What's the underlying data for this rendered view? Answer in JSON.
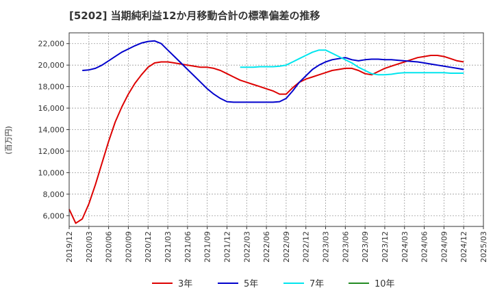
{
  "chart_data": {
    "type": "line",
    "title": "[5202]  当期純利益12か月移動合計の標準偏差の推移",
    "xlabel": "",
    "ylabel": "(百万円)",
    "ylim": [
      5000,
      23000
    ],
    "yticks": [
      6000,
      8000,
      10000,
      12000,
      14000,
      16000,
      18000,
      20000,
      22000
    ],
    "ytick_labels": [
      "6,000",
      "8,000",
      "10,000",
      "12,000",
      "14,000",
      "16,000",
      "18,000",
      "20,000",
      "22,000"
    ],
    "xtick_labels": [
      "2019/12",
      "2020/03",
      "2020/06",
      "2020/09",
      "2020/12",
      "2021/03",
      "2021/06",
      "2021/09",
      "2021/12",
      "2022/03",
      "2022/06",
      "2022/09",
      "2022/12",
      "2023/03",
      "2023/06",
      "2023/09",
      "2023/12",
      "2024/03",
      "2024/06",
      "2024/09",
      "2024/12",
      "2025/03"
    ],
    "grid": true,
    "legend_position": "bottom",
    "series": [
      {
        "name": "3年",
        "color": "#dd0000",
        "start_index": 0,
        "values": [
          6600,
          5300,
          5700,
          7100,
          8900,
          10900,
          12900,
          14700,
          16100,
          17300,
          18300,
          19100,
          19800,
          20200,
          20300,
          20300,
          20200,
          20100,
          20000,
          19900,
          19800,
          19800,
          19700,
          19500,
          19200,
          18900,
          18600,
          18400,
          18200,
          18000,
          17800,
          17600,
          17300,
          17300,
          17900,
          18400,
          18700,
          18900,
          19100,
          19300,
          19500,
          19600,
          19700,
          19700,
          19500,
          19200,
          19100,
          19400,
          19700,
          19900,
          20100,
          20300,
          20500,
          20700,
          20800,
          20900,
          20900,
          20800,
          20600,
          20400,
          20300
        ]
      },
      {
        "name": "5年",
        "color": "#0000cc",
        "start_index": 2,
        "values": [
          19500,
          19550,
          19700,
          20000,
          20400,
          20800,
          21200,
          21500,
          21800,
          22050,
          22200,
          22250,
          22000,
          21400,
          20800,
          20200,
          19600,
          19000,
          18400,
          17800,
          17300,
          16900,
          16600,
          16550,
          16550,
          16550,
          16550,
          16550,
          16550,
          16550,
          16600,
          16900,
          17600,
          18400,
          19000,
          19600,
          20000,
          20300,
          20500,
          20600,
          20700,
          20500,
          20400,
          20500,
          20550,
          20550,
          20500,
          20500,
          20450,
          20400,
          20350,
          20300,
          20200,
          20100,
          20000,
          19900,
          19800,
          19700,
          19600
        ]
      },
      {
        "name": "7年",
        "color": "#00e5ee",
        "start_index": 26,
        "values": [
          19800,
          19800,
          19800,
          19850,
          19850,
          19850,
          19900,
          20000,
          20300,
          20600,
          20900,
          21200,
          21400,
          21400,
          21100,
          20800,
          20500,
          20200,
          19800,
          19500,
          19200,
          19100,
          19100,
          19150,
          19250,
          19300,
          19300,
          19300,
          19300,
          19300,
          19300,
          19300,
          19250,
          19250,
          19250
        ]
      },
      {
        "name": "10年",
        "color": "#228b22",
        "start_index": 0,
        "values": []
      }
    ]
  }
}
